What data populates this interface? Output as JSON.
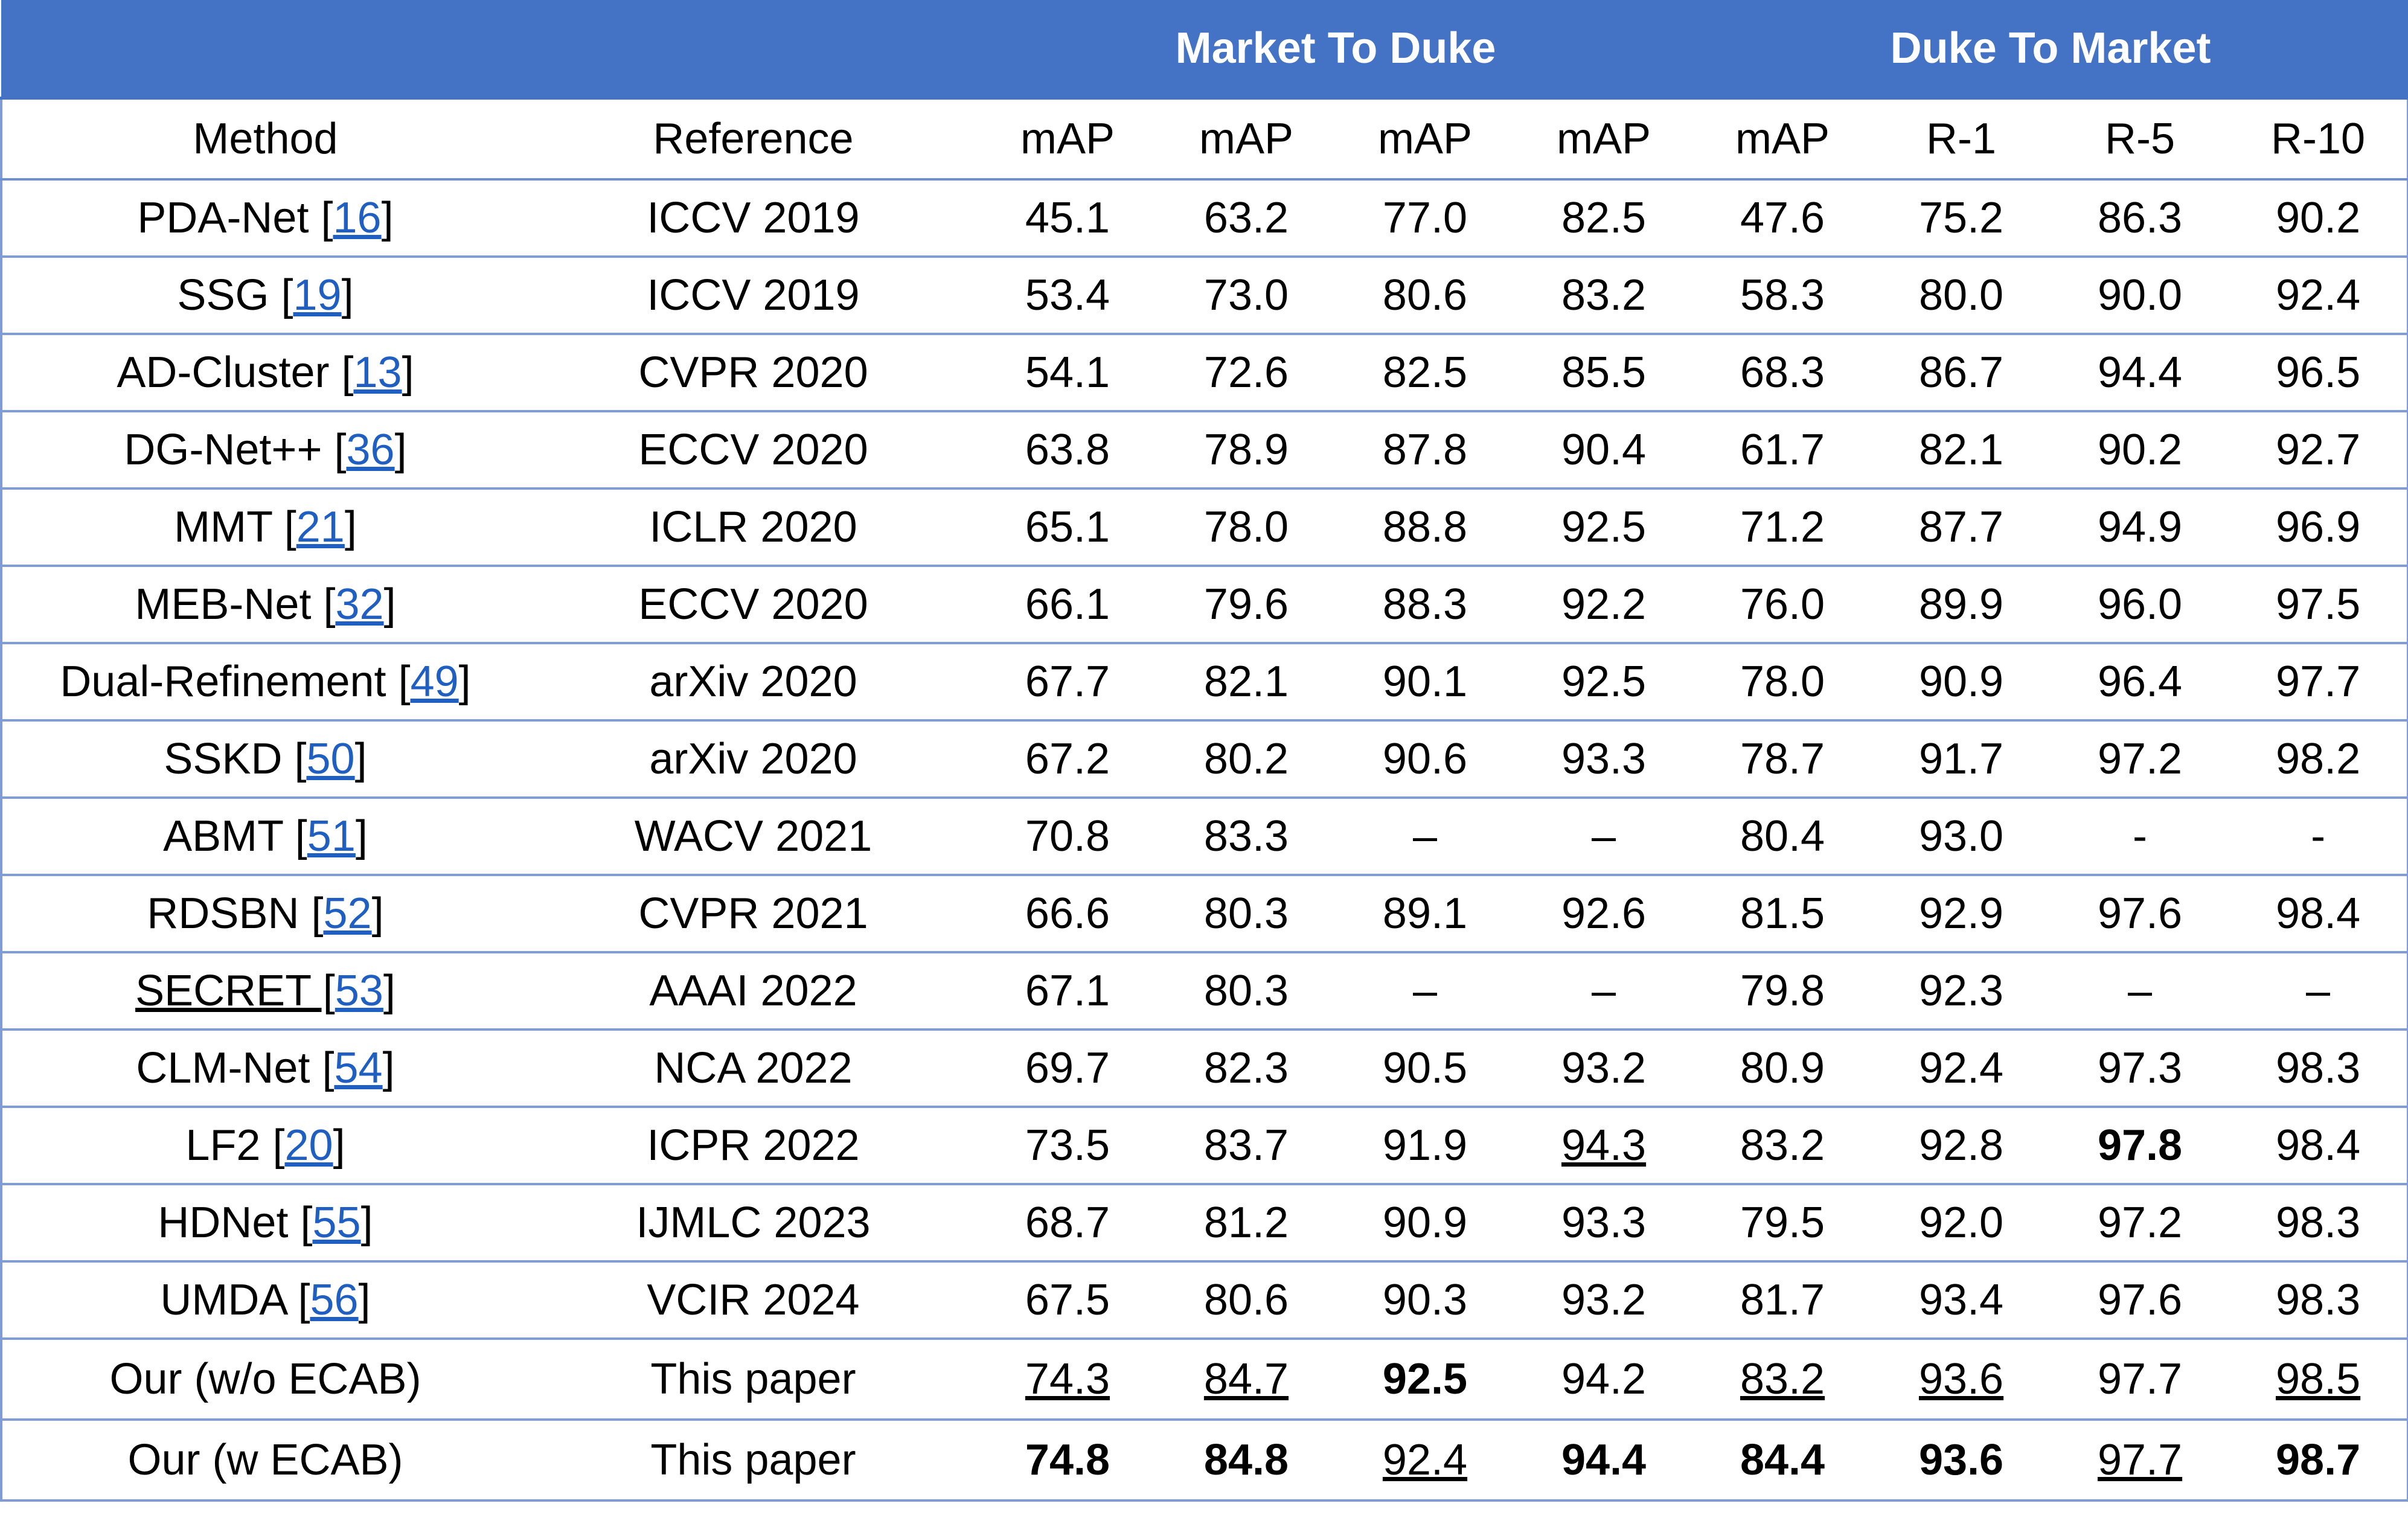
{
  "table": {
    "group_headers": {
      "blank": "",
      "market_to_duke": "Market To Duke",
      "duke_to_market": "Duke To Market"
    },
    "columns": [
      "Method",
      "Reference",
      "mAP",
      "mAP",
      "mAP",
      "mAP",
      "mAP",
      "R-1",
      "R-5",
      "R-10"
    ],
    "rows": [
      {
        "method": "PDA-Net [",
        "cite": "16",
        "close": "]",
        "reference": "ICCV 2019",
        "values": [
          "45.1",
          "63.2",
          "77.0",
          "82.5",
          "47.6",
          "75.2",
          "86.3",
          "90.2"
        ]
      },
      {
        "method": "SSG  [",
        "cite": "19",
        "close": "]",
        "reference": "ICCV 2019",
        "values": [
          "53.4",
          "73.0",
          "80.6",
          "83.2",
          "58.3",
          "80.0",
          "90.0",
          "92.4"
        ]
      },
      {
        "method": "AD-Cluster [",
        "cite": "13",
        "close": "]",
        "reference": "CVPR 2020",
        "values": [
          "54.1",
          "72.6",
          "82.5",
          "85.5",
          "68.3",
          "86.7",
          "94.4",
          "96.5"
        ]
      },
      {
        "method": "DG-Net++ [",
        "cite": "36",
        "close": "]",
        "reference": "ECCV 2020",
        "values": [
          "63.8",
          "78.9",
          "87.8",
          "90.4",
          "61.7",
          "82.1",
          "90.2",
          "92.7"
        ]
      },
      {
        "method": "MMT [",
        "cite": "21",
        "close": "]",
        "reference": "ICLR 2020",
        "values": [
          "65.1",
          "78.0",
          "88.8",
          "92.5",
          "71.2",
          "87.7",
          "94.9",
          "96.9"
        ]
      },
      {
        "method": "MEB-Net [",
        "cite": "32",
        "close": "]",
        "reference": "ECCV 2020",
        "values": [
          "66.1",
          "79.6",
          "88.3",
          "92.2",
          "76.0",
          "89.9",
          "96.0",
          "97.5"
        ]
      },
      {
        "method": "Dual-Refinement [",
        "cite": "49",
        "close": "]",
        "reference": "arXiv 2020",
        "values": [
          "67.7",
          "82.1",
          "90.1",
          "92.5",
          "78.0",
          "90.9",
          "96.4",
          "97.7"
        ]
      },
      {
        "method": "SSKD [",
        "cite": "50",
        "close": "]",
        "reference": "arXiv 2020",
        "values": [
          "67.2",
          "80.2",
          "90.6",
          "93.3",
          "78.7",
          "91.7",
          "97.2",
          "98.2"
        ]
      },
      {
        "method": "ABMT [",
        "cite": "51",
        "close": "]",
        "reference": "WACV 2021",
        "values": [
          "70.8",
          "83.3",
          "–",
          "–",
          "80.4",
          "93.0",
          "-",
          "-"
        ]
      },
      {
        "method": "RDSBN [",
        "cite": "52",
        "close": "]",
        "reference": "CVPR 2021",
        "values": [
          "66.6",
          "80.3",
          "89.1",
          "92.6",
          "81.5",
          "92.9",
          "97.6",
          "98.4"
        ]
      },
      {
        "method": "SECRET [",
        "cite": "53",
        "close": "]",
        "reference": "AAAI 2022",
        "values": [
          "67.1",
          "80.3",
          "–",
          "–",
          "79.8",
          "92.3",
          "–",
          "–"
        ],
        "underline_method": true
      },
      {
        "method": "CLM-Net [",
        "cite": "54",
        "close": "]",
        "reference": "NCA 2022",
        "values": [
          "69.7",
          "82.3",
          "90.5",
          "93.2",
          "80.9",
          "92.4",
          "97.3",
          "98.3"
        ]
      },
      {
        "method": "LF2 [",
        "cite": "20",
        "close": "]",
        "reference": "ICPR 2022",
        "values": [
          "73.5",
          "83.7",
          "91.9",
          "94.3",
          "83.2",
          "92.8",
          "97.8",
          "98.4"
        ],
        "bold": [
          6
        ],
        "underline": [
          3
        ]
      },
      {
        "method": "HDNet [",
        "cite": "55",
        "close": "]",
        "reference": "IJMLC 2023",
        "values": [
          "68.7",
          "81.2",
          "90.9",
          "93.3",
          "79.5",
          "92.0",
          "97.2",
          "98.3"
        ]
      },
      {
        "method": "UMDA [",
        "cite": "56",
        "close": "]",
        "reference": "VCIR 2024",
        "values": [
          "67.5",
          "80.6",
          "90.3",
          "93.2",
          "81.7",
          "93.4",
          "97.6",
          "98.3"
        ]
      },
      {
        "method": "Our (w/o ECAB)",
        "cite": "",
        "close": "",
        "reference": "This paper",
        "values": [
          "74.3",
          "84.7",
          "92.5",
          "94.2",
          "83.2",
          "93.6",
          "97.7",
          "98.5"
        ],
        "bold": [
          2
        ],
        "underline": [
          0,
          1,
          4,
          5,
          7
        ],
        "ours": true
      },
      {
        "method": "Our (w ECAB)",
        "cite": "",
        "close": "",
        "reference": "This paper",
        "values": [
          "74.8",
          "84.8",
          "92.4",
          "94.4",
          "84.4",
          "93.6",
          "97.7",
          "98.7"
        ],
        "bold": [
          0,
          1,
          3,
          4,
          5,
          7
        ],
        "underline": [
          2,
          6
        ],
        "ours": true
      }
    ]
  },
  "colors": {
    "header_bg": "#4472c4",
    "header_text": "#ffffff",
    "citation_link": "#1f5fc1",
    "grid_line": "#7f9bd8"
  }
}
